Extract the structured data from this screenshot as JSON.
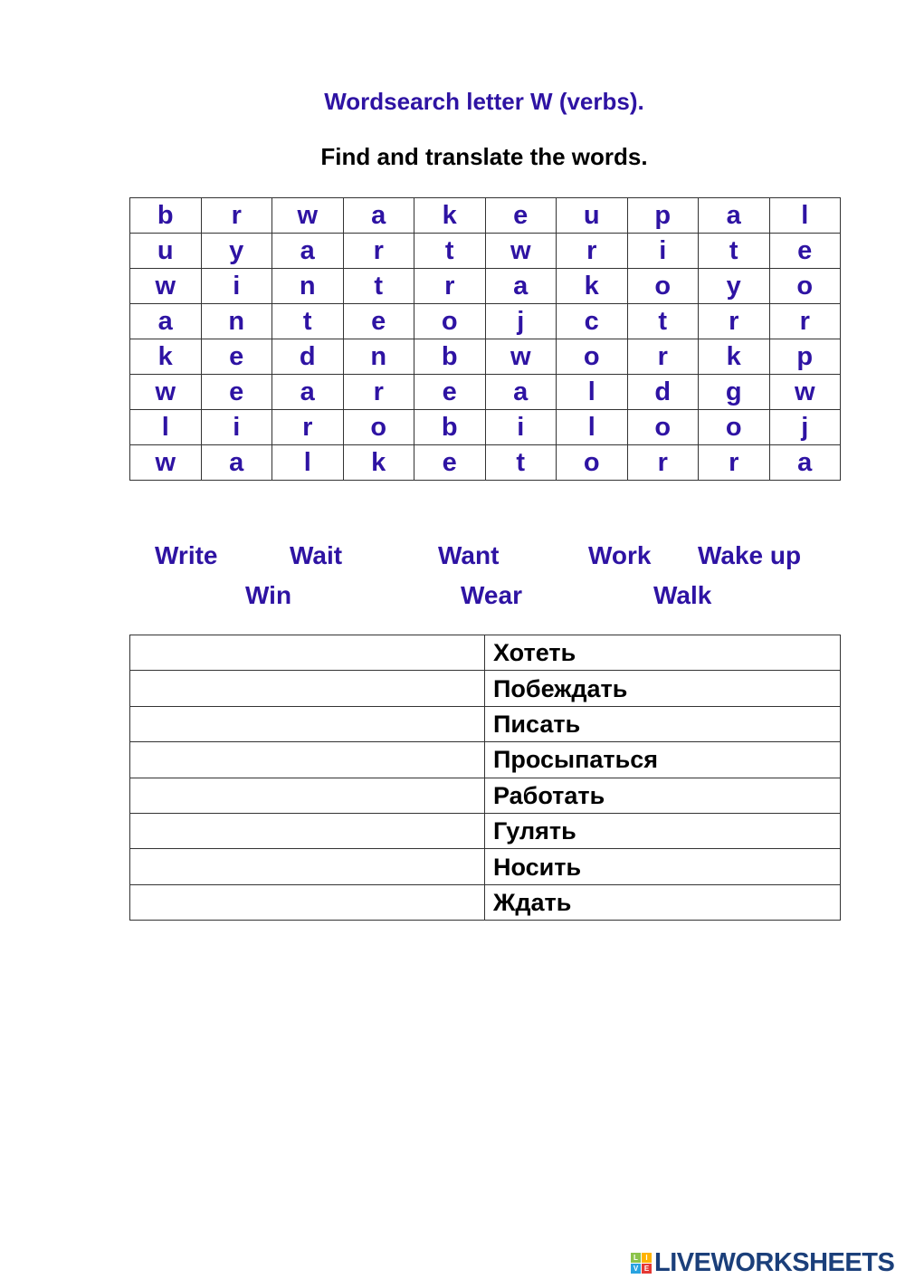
{
  "title": "Wordsearch letter W (verbs).",
  "subtitle": "Find and translate the words.",
  "grid": [
    [
      "b",
      "r",
      "w",
      "a",
      "k",
      "e",
      "u",
      "p",
      "a",
      "l"
    ],
    [
      "u",
      "y",
      "a",
      "r",
      "t",
      "w",
      "r",
      "i",
      "t",
      "e"
    ],
    [
      "w",
      "i",
      "n",
      "t",
      "r",
      "a",
      "k",
      "o",
      "y",
      "o"
    ],
    [
      "a",
      "n",
      "t",
      "e",
      "o",
      "j",
      "c",
      "t",
      "r",
      "r"
    ],
    [
      "k",
      "e",
      "d",
      "n",
      "b",
      "w",
      "o",
      "r",
      "k",
      "p"
    ],
    [
      "w",
      "e",
      "a",
      "r",
      "e",
      "a",
      "l",
      "d",
      "g",
      "w"
    ],
    [
      "l",
      "i",
      "r",
      "o",
      "b",
      "i",
      "l",
      "o",
      "o",
      "j"
    ],
    [
      "w",
      "a",
      "l",
      "k",
      "e",
      "t",
      "o",
      "r",
      "r",
      "a"
    ]
  ],
  "word_bank": [
    "Write",
    "Wait",
    "Want",
    "Work",
    "Wake up",
    "Win",
    "Wear",
    "Walk"
  ],
  "translations": [
    "Хотеть",
    "Побеждать",
    "Писать",
    "Просыпаться",
    "Работать",
    "Гулять",
    "Носить",
    "Ждать"
  ],
  "logo": {
    "text": "LIVEWORKSHEETS",
    "badge": [
      "L",
      "I",
      "V",
      "E"
    ]
  },
  "colors": {
    "accent": "#2e13a3",
    "logo": "#1b3f7a"
  }
}
